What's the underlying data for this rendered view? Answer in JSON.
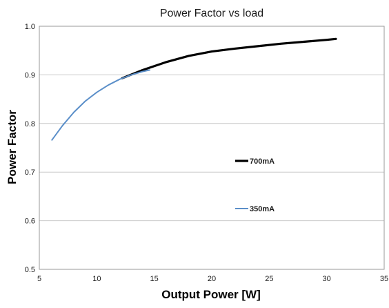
{
  "chart_data": {
    "type": "line",
    "title": "Power Factor vs load",
    "xlabel": "Output Power [W]",
    "ylabel": "Power Factor",
    "xlim": [
      5,
      35
    ],
    "ylim": [
      0.5,
      1.0
    ],
    "x_ticks": [
      5,
      10,
      15,
      20,
      25,
      30,
      35
    ],
    "x_tick_labels": [
      "5",
      "10",
      "15",
      "20",
      "25",
      "30",
      "35"
    ],
    "y_ticks": [
      0.5,
      0.6,
      0.7,
      0.8,
      0.9,
      1.0
    ],
    "y_tick_labels": [
      "0.5",
      "0.6",
      "0.7",
      "0.8",
      "0.9",
      "1.0"
    ],
    "grid": "horizontal",
    "legend_placement": "inside-right",
    "series": [
      {
        "name": "700mA",
        "color": "#000000",
        "x": [
          12.2,
          14.0,
          16.0,
          18.0,
          20.0,
          22.0,
          24.0,
          26.0,
          28.0,
          30.0,
          30.8
        ],
        "y": [
          0.893,
          0.91,
          0.926,
          0.939,
          0.948,
          0.954,
          0.959,
          0.964,
          0.968,
          0.972,
          0.974
        ]
      },
      {
        "name": "350mA",
        "color": "#5b8fc9",
        "x": [
          6.1,
          7.0,
          8.0,
          9.0,
          10.0,
          11.0,
          12.0,
          13.0,
          14.0,
          14.6
        ],
        "y": [
          0.766,
          0.795,
          0.823,
          0.846,
          0.864,
          0.879,
          0.891,
          0.9,
          0.907,
          0.91
        ]
      }
    ]
  }
}
